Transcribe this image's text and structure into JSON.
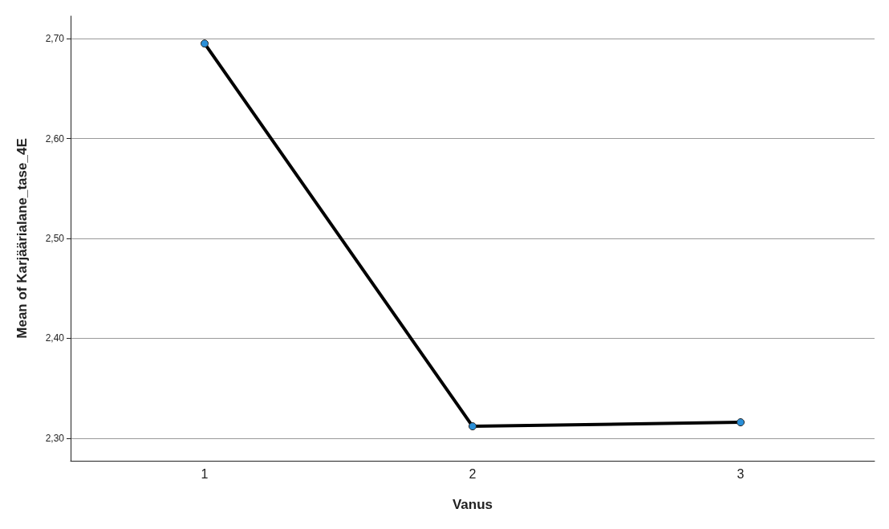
{
  "chart_data": {
    "type": "line",
    "xlabel": "Vanus",
    "ylabel": "Mean of Karjäärialane_tase_4E",
    "categories": [
      "1",
      "2",
      "3"
    ],
    "series": [
      {
        "color": "#000000",
        "colors": [
          "#2a8fd8",
          "#2a8fd8",
          "#2a8fd8"
        ],
        "values": [
          2.695,
          2.312,
          2.316
        ]
      }
    ],
    "ylim": [
      2.2775,
      2.7225
    ],
    "yticks": [
      {
        "value": 2.3,
        "label": "2,30"
      },
      {
        "value": 2.4,
        "label": "2,40"
      },
      {
        "value": 2.5,
        "label": "2,50"
      },
      {
        "value": 2.6,
        "label": "2,60"
      },
      {
        "value": 2.7,
        "label": "2,70"
      }
    ],
    "grid": "y",
    "marker": "circle",
    "line_style": "solid"
  }
}
